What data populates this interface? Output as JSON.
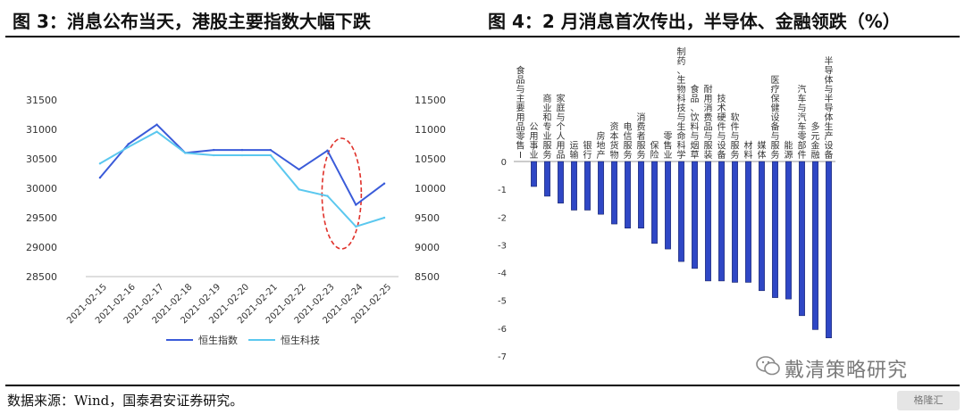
{
  "left_title": "图 3：消息公布当天，港股主要指数大幅下跌",
  "right_title": "图 4：2 月消息首次传出，半导体、金融领跌（%）",
  "source": "数据来源：Wind，国泰君安证券研究。",
  "watermark": "戴清策略研究",
  "corner_logo": "格隆汇",
  "colors": {
    "hsi": "#3a5bd9",
    "hstech": "#5bc8ef",
    "bar": "#2f47c5",
    "annotation": "#e0312a"
  },
  "chart_data": [
    {
      "type": "line",
      "categories": [
        "2021-02-15",
        "2021-02-16",
        "2021-02-17",
        "2021-02-18",
        "2021-02-19",
        "2021-02-20",
        "2021-02-21",
        "2021-02-22",
        "2021-02-23",
        "2021-02-24",
        "2021-02-25"
      ],
      "y_left_ticks": [
        "31500",
        "31000",
        "30500",
        "30000",
        "29500",
        "29000",
        "28500"
      ],
      "y_right_ticks": [
        "11500",
        "11000",
        "10500",
        "10000",
        "9500",
        "9000",
        "8500"
      ],
      "ylim_left": [
        28500,
        31500
      ],
      "ylim_right": [
        8500,
        11500
      ],
      "series": [
        {
          "name": "恒生指数",
          "axis": "left",
          "values": [
            30180,
            30750,
            31080,
            30600,
            30650,
            30650,
            30650,
            30320,
            30640,
            29720,
            30080
          ]
        },
        {
          "name": "恒生科技",
          "axis": "right",
          "values": [
            10420,
            10700,
            10960,
            10600,
            10560,
            10560,
            10560,
            9980,
            9870,
            9350,
            9500
          ]
        }
      ],
      "legend": "bottom",
      "annotation": "red dashed ellipse around 2021-02-23 to 2021-02-24"
    },
    {
      "type": "bar",
      "categories": [
        "食品与主要用品零售Ⅰ",
        "公用事业",
        "商业和专业服务",
        "家庭与个人用品",
        "运输",
        "银行",
        "房地产",
        "资本货物",
        "电信服务",
        "消费者服务",
        "保险",
        "零售业",
        "制药、生物科技与生命科学",
        "食品、饮料与烟草",
        "耐用消费品与服装",
        "技术硬件与设备",
        "软件与服务",
        "材料",
        "媒体",
        "医疗保健设备与服务",
        "能源",
        "汽车与汽车零部件",
        "多元金融",
        "半导体与半导体生产设备"
      ],
      "values": [
        0,
        -0.9,
        -1.25,
        -1.5,
        -1.75,
        -1.75,
        -1.9,
        -2.25,
        -2.4,
        -2.4,
        -2.95,
        -3.15,
        -3.6,
        -3.85,
        -4.3,
        -4.3,
        -4.35,
        -4.35,
        -4.65,
        -4.9,
        -4.95,
        -5.55,
        -6.05,
        -6.35
      ],
      "y_ticks": [
        "0",
        "-1",
        "-2",
        "-3",
        "-4",
        "-5",
        "-6",
        "-7"
      ],
      "ylim": [
        -7,
        0
      ]
    }
  ]
}
